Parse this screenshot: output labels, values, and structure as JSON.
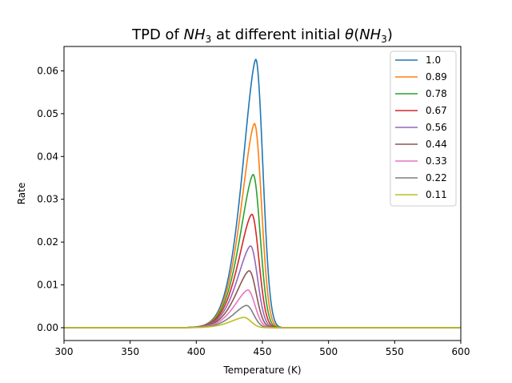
{
  "chart_data": {
    "type": "line",
    "title_prefix": "TPD of ",
    "title_var1_base": "NH",
    "title_var1_sub": "3",
    "title_middle": " at different initial ",
    "title_theta": "θ",
    "title_open": "(",
    "title_var2_base": "NH",
    "title_var2_sub": "3",
    "title_close": ")",
    "xlabel": "Temperature (K)",
    "ylabel": "Rate",
    "xlim": [
      300,
      600
    ],
    "ylim": [
      -0.003,
      0.0657
    ],
    "x_ticks": [
      300,
      350,
      400,
      450,
      500,
      550,
      600
    ],
    "x_tick_labels": [
      "300",
      "350",
      "400",
      "450",
      "500",
      "550",
      "600"
    ],
    "y_ticks": [
      0.0,
      0.01,
      0.02,
      0.03,
      0.04,
      0.05,
      0.06
    ],
    "y_tick_labels": [
      "0.00",
      "0.01",
      "0.02",
      "0.03",
      "0.04",
      "0.05",
      "0.06"
    ],
    "legend_position": "top-right",
    "grid": false,
    "series": [
      {
        "name": "1.0",
        "color": "#1f77b4",
        "peak_x": 445,
        "peak_y": 0.0627
      },
      {
        "name": "0.89",
        "color": "#ff7f0e",
        "peak_x": 444,
        "peak_y": 0.0477
      },
      {
        "name": "0.78",
        "color": "#2ca02c",
        "peak_x": 443,
        "peak_y": 0.0358
      },
      {
        "name": "0.67",
        "color": "#d62728",
        "peak_x": 442,
        "peak_y": 0.0265
      },
      {
        "name": "0.56",
        "color": "#9467bd",
        "peak_x": 441,
        "peak_y": 0.0191
      },
      {
        "name": "0.44",
        "color": "#8c564b",
        "peak_x": 440,
        "peak_y": 0.0133
      },
      {
        "name": "0.33",
        "color": "#e377c2",
        "peak_x": 439,
        "peak_y": 0.0088
      },
      {
        "name": "0.22",
        "color": "#7f7f7f",
        "peak_x": 438,
        "peak_y": 0.0052
      },
      {
        "name": "0.11",
        "color": "#bcbd22",
        "peak_x": 436,
        "peak_y": 0.0024
      }
    ]
  }
}
